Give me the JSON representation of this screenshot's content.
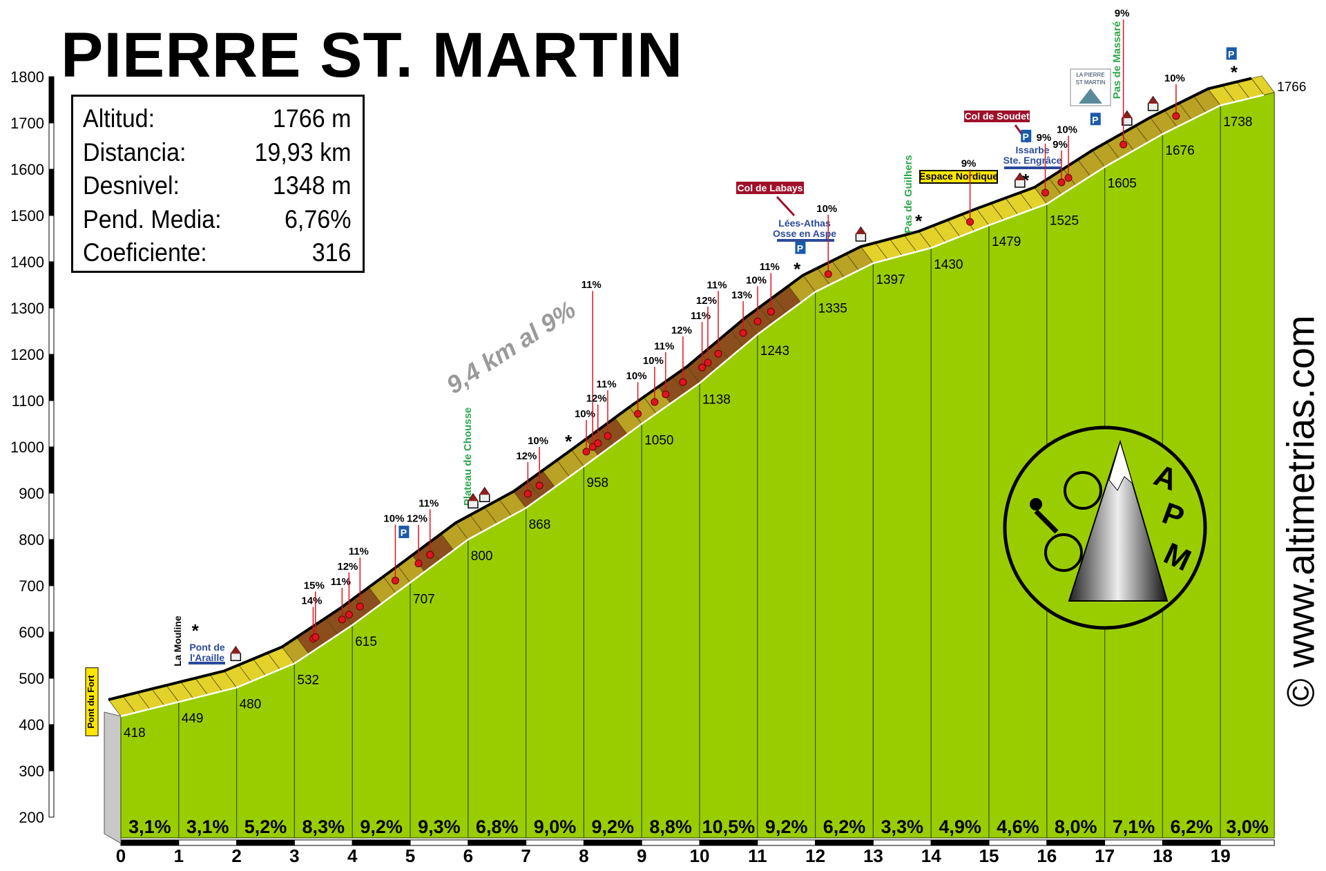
{
  "title": "PIERRE ST. MARTIN",
  "info": [
    {
      "label": "Altitud:",
      "value": "1766 m"
    },
    {
      "label": "Distancia:",
      "value": "19,93 km"
    },
    {
      "label": "Desnivel:",
      "value": "1348 m"
    },
    {
      "label": "Pend. Media:",
      "value": "6,76%"
    },
    {
      "label": "Coeficiente:",
      "value": "316"
    }
  ],
  "website": "© www.altimetrias.com",
  "logo": {
    "text": "APM",
    "letters": [
      "A",
      "P",
      "M"
    ]
  },
  "colors": {
    "terrain": "#9acd00",
    "road_easy": "#e2d22a",
    "road_mid": "#b9a224",
    "road_steep": "#8b4e1c",
    "marker": "#e0141e",
    "label_red": "#a0102a",
    "label_blue": "#2a4a9a",
    "label_green": "#2aa84a",
    "label_yellow": "#ffe600"
  },
  "chart_data": {
    "type": "area",
    "title": "PIERRE ST. MARTIN",
    "xlabel": "",
    "ylabel": "",
    "xlim": [
      0,
      19.93
    ],
    "ylim": [
      200,
      1800
    ],
    "y_ticks": [
      200,
      300,
      400,
      500,
      600,
      700,
      800,
      900,
      1000,
      1100,
      1200,
      1300,
      1400,
      1500,
      1600,
      1700,
      1800
    ],
    "x_ticks": [
      0,
      1,
      2,
      3,
      4,
      5,
      6,
      7,
      8,
      9,
      10,
      11,
      12,
      13,
      14,
      15,
      16,
      17,
      18,
      19
    ],
    "grid": false,
    "points": [
      {
        "km": 0,
        "alt": 418
      },
      {
        "km": 1,
        "alt": 449
      },
      {
        "km": 2,
        "alt": 480
      },
      {
        "km": 3,
        "alt": 532
      },
      {
        "km": 4,
        "alt": 615
      },
      {
        "km": 5,
        "alt": 707
      },
      {
        "km": 6,
        "alt": 800
      },
      {
        "km": 7,
        "alt": 868
      },
      {
        "km": 8,
        "alt": 958
      },
      {
        "km": 9,
        "alt": 1050
      },
      {
        "km": 10,
        "alt": 1138
      },
      {
        "km": 11,
        "alt": 1243
      },
      {
        "km": 12,
        "alt": 1335
      },
      {
        "km": 13,
        "alt": 1397
      },
      {
        "km": 14,
        "alt": 1430
      },
      {
        "km": 15,
        "alt": 1479
      },
      {
        "km": 16,
        "alt": 1525
      },
      {
        "km": 17,
        "alt": 1605
      },
      {
        "km": 18,
        "alt": 1676
      },
      {
        "km": 19,
        "alt": 1738
      },
      {
        "km": 19.93,
        "alt": 1766
      }
    ],
    "segment_gradients": [
      "3,1%",
      "3,1%",
      "5,2%",
      "8,3%",
      "9,2%",
      "9,3%",
      "6,8%",
      "9,0%",
      "9,2%",
      "8,8%",
      "10,5%",
      "9,2%",
      "6,2%",
      "3,3%",
      "4,9%",
      "4,6%",
      "8,0%",
      "7,1%",
      "6,2%",
      "3,0%"
    ],
    "segment_gradient_values": [
      3.1,
      3.1,
      5.2,
      8.3,
      9.2,
      9.3,
      6.8,
      9.0,
      9.2,
      8.8,
      10.5,
      9.2,
      6.2,
      3.3,
      4.9,
      4.6,
      8.0,
      7.1,
      6.2,
      3.0
    ],
    "ramps": [
      {
        "km": 3.43,
        "grade": "14%"
      },
      {
        "km": 3.47,
        "grade": "15%"
      },
      {
        "km": 3.93,
        "grade": "11%"
      },
      {
        "km": 4.05,
        "grade": "12%"
      },
      {
        "km": 4.24,
        "grade": "11%"
      },
      {
        "km": 4.85,
        "grade": "10%"
      },
      {
        "km": 5.25,
        "grade": "12%"
      },
      {
        "km": 5.45,
        "grade": "11%"
      },
      {
        "km": 7.14,
        "grade": "12%"
      },
      {
        "km": 7.34,
        "grade": "10%"
      },
      {
        "km": 8.15,
        "grade": "10%"
      },
      {
        "km": 8.26,
        "grade": "11%"
      },
      {
        "km": 8.35,
        "grade": "12%"
      },
      {
        "km": 8.52,
        "grade": "11%"
      },
      {
        "km": 9.04,
        "grade": "10%"
      },
      {
        "km": 9.33,
        "grade": "10%"
      },
      {
        "km": 9.52,
        "grade": "11%"
      },
      {
        "km": 9.82,
        "grade": "12%"
      },
      {
        "km": 10.15,
        "grade": "11%"
      },
      {
        "km": 10.25,
        "grade": "12%"
      },
      {
        "km": 10.43,
        "grade": "11%"
      },
      {
        "km": 10.86,
        "grade": "13%"
      },
      {
        "km": 11.11,
        "grade": "10%"
      },
      {
        "km": 11.34,
        "grade": "11%"
      },
      {
        "km": 12.33,
        "grade": "10%"
      },
      {
        "km": 14.78,
        "grade": "9%"
      },
      {
        "km": 16.08,
        "grade": "9%"
      },
      {
        "km": 16.36,
        "grade": "9%"
      },
      {
        "km": 16.48,
        "grade": "10%"
      },
      {
        "km": 17.43,
        "grade": "9%"
      },
      {
        "km": 18.34,
        "grade": "10%"
      }
    ],
    "annotations": {
      "pont_du_fort": "Pont du Fort",
      "la_mouline": "La Mouline",
      "pont_araille": [
        "Pont de",
        "l'Araille"
      ],
      "plateau_chousse": "Plateau de Chousse",
      "col_labays": "Col de Labays",
      "lees_athas": [
        "Lées-Athas",
        "Osse en Aspe"
      ],
      "pas_guilhers": "Pas de Guilhers",
      "espace_nordique": "Espace Nordique",
      "col_soudet": "Col de Soudet",
      "issarbe": [
        "Issarbe",
        "Ste. Engrâce"
      ],
      "pas_massare": "Pas de Massaré",
      "long_climb": "9,4 km al 9%",
      "resort_logo": [
        "LA PIERRE",
        "ST MARTIN"
      ]
    },
    "icons": [
      {
        "km": 5.1,
        "icon": "parking-icon"
      },
      {
        "km": 11.95,
        "icon": "parking-icon"
      },
      {
        "km": 15.85,
        "icon": "parking-icon"
      },
      {
        "km": 17.05,
        "icon": "parking-icon"
      },
      {
        "km": 19.4,
        "icon": "parking-icon"
      },
      {
        "km": 1.5,
        "icon": "star-icon"
      },
      {
        "km": 7.95,
        "icon": "star-icon"
      },
      {
        "km": 11.9,
        "icon": "star-icon"
      },
      {
        "km": 14.0,
        "icon": "star-icon"
      },
      {
        "km": 15.85,
        "icon": "star-icon"
      },
      {
        "km": 17.6,
        "icon": "star-icon"
      },
      {
        "km": 18.05,
        "icon": "star-icon"
      },
      {
        "km": 19.45,
        "icon": "star-icon"
      },
      {
        "km": 2.2,
        "icon": "house-icon"
      },
      {
        "km": 6.3,
        "icon": "house-icon"
      },
      {
        "km": 6.5,
        "icon": "house-icon"
      },
      {
        "km": 13.0,
        "icon": "house-icon"
      },
      {
        "km": 15.75,
        "icon": "house-icon"
      },
      {
        "km": 17.6,
        "icon": "house-icon"
      },
      {
        "km": 18.05,
        "icon": "house-icon"
      }
    ]
  }
}
